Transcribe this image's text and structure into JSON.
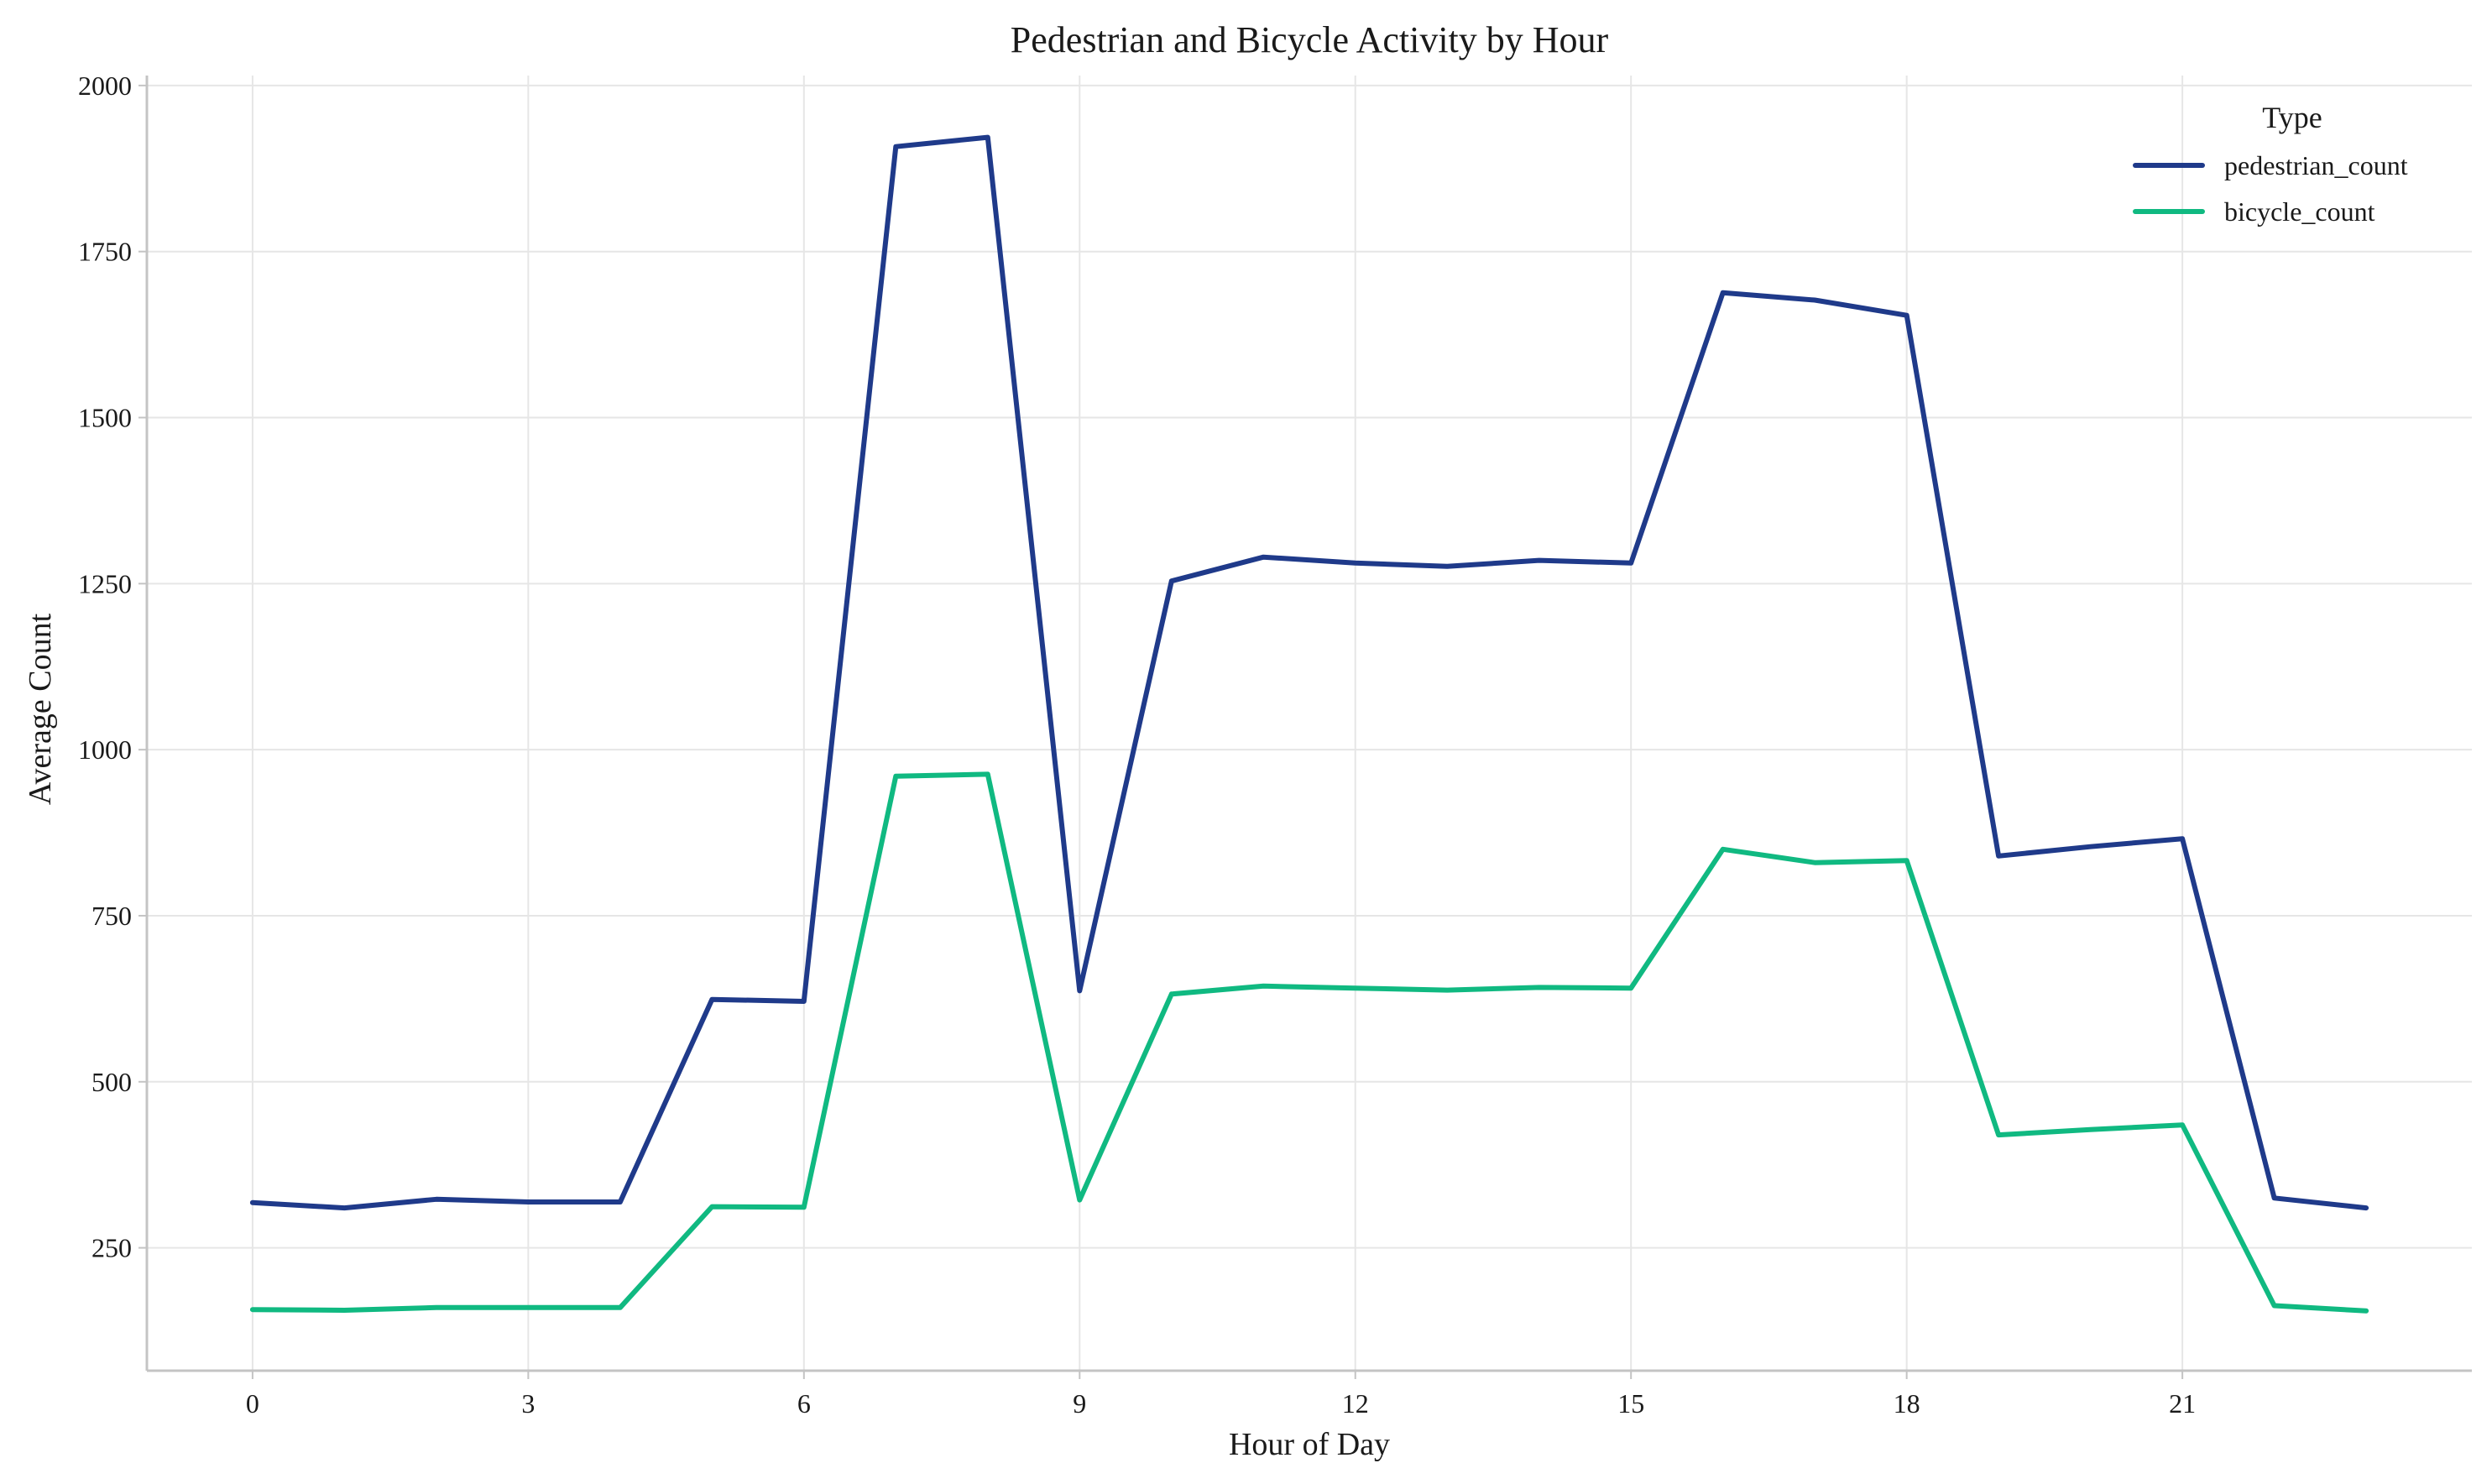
{
  "chart_data": {
    "type": "line",
    "title": "Pedestrian and Bicycle Activity by Hour",
    "xlabel": "Hour of Day",
    "ylabel": "Average Count",
    "x": [
      0,
      1,
      2,
      3,
      4,
      5,
      6,
      7,
      8,
      9,
      10,
      11,
      12,
      13,
      14,
      15,
      16,
      17,
      18,
      19,
      20,
      21,
      22,
      23
    ],
    "xlim": [
      -1.15,
      24.15
    ],
    "ylim": [
      65,
      2015
    ],
    "xticks": [
      0,
      3,
      6,
      9,
      12,
      15,
      18,
      21
    ],
    "yticks": [
      250,
      500,
      750,
      1000,
      1250,
      1500,
      1750,
      2000
    ],
    "grid": true,
    "legend_title": "Type",
    "legend_position": "top-right",
    "series": [
      {
        "name": "pedestrian_count",
        "color": "#1f3a8a",
        "values": [
          318,
          310,
          323,
          319,
          319,
          624,
          621,
          1908,
          1922,
          637,
          1254,
          1290,
          1281,
          1276,
          1285,
          1281,
          1688,
          1677,
          1654,
          840,
          854,
          866,
          325,
          310
        ]
      },
      {
        "name": "bicycle_count",
        "color": "#10b981",
        "values": [
          157,
          156,
          160,
          160,
          160,
          312,
          311,
          960,
          963,
          322,
          632,
          644,
          641,
          638,
          642,
          641,
          850,
          830,
          833,
          420,
          428,
          435,
          163,
          155
        ]
      }
    ]
  }
}
